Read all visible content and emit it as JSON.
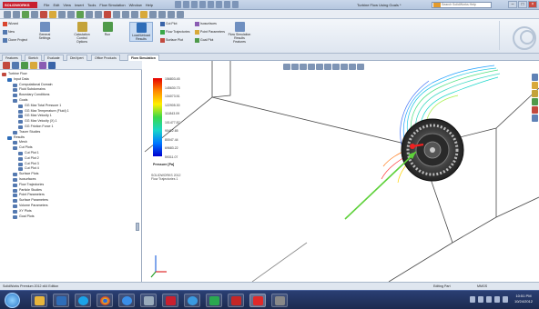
{
  "app": {
    "logo": "SOLIDWORKS",
    "title": "Turbine Flow Using Goals *"
  },
  "menu": [
    "File",
    "Edit",
    "View",
    "Insert",
    "Tools",
    "Flow Simulation",
    "Window",
    "Help"
  ],
  "search": {
    "placeholder": "Search SolidWorks Help"
  },
  "ribbon": {
    "buttons": [
      "Wizard",
      "General Settings",
      "Calculation Control Options",
      "Run",
      "Load/Unload Results",
      "Flow Simulation Results",
      "Flow Simulation Results Features"
    ],
    "small": [
      "Cut Plot",
      "Flow Trajectories",
      "Surface Plot",
      "Isosurfaces",
      "Point Parameters",
      "Goal Plot"
    ],
    "left_small": [
      "New",
      "Clone Project"
    ]
  },
  "tabs": [
    "Features",
    "Sketch",
    "Evaluate",
    "DimXpert",
    "Office Products",
    "Flow Simulation"
  ],
  "active_tab": "Flow Simulation",
  "tree": [
    {
      "label": "Turbine Flow",
      "level": 0
    },
    {
      "label": "Input Data",
      "level": 1
    },
    {
      "label": "Computational Domain",
      "level": 2
    },
    {
      "label": "Fluid Subdomains",
      "level": 2
    },
    {
      "label": "Boundary Conditions",
      "level": 2
    },
    {
      "label": "Goals",
      "level": 2
    },
    {
      "label": "GG Max Total Pressure 1",
      "level": 3
    },
    {
      "label": "GG Max Temperature (Fluid) 1",
      "level": 3
    },
    {
      "label": "GG Max Velocity 1",
      "level": 3
    },
    {
      "label": "GG Max Velocity (X) 1",
      "level": 3
    },
    {
      "label": "GG Friction Force 1",
      "level": 3
    },
    {
      "label": "Tracer Studies",
      "level": 2
    },
    {
      "label": "Results",
      "level": 1
    },
    {
      "label": "Mesh",
      "level": 2
    },
    {
      "label": "Cut Plots",
      "level": 2
    },
    {
      "label": "Cut Plot 1",
      "level": 3
    },
    {
      "label": "Cut Plot 2",
      "level": 3
    },
    {
      "label": "Cut Plot 3",
      "level": 3
    },
    {
      "label": "Cut Plot 4",
      "level": 3
    },
    {
      "label": "Surface Plots",
      "level": 2
    },
    {
      "label": "Isosurfaces",
      "level": 2
    },
    {
      "label": "Flow Trajectories",
      "level": 2
    },
    {
      "label": "Particle Studies",
      "level": 2
    },
    {
      "label": "Point Parameters",
      "level": 2
    },
    {
      "label": "Surface Parameters",
      "level": 2
    },
    {
      "label": "Volume Parameters",
      "level": 2
    },
    {
      "label": "XY Plots",
      "level": 2
    },
    {
      "label": "Goal Plots",
      "level": 2
    }
  ],
  "panel_tabs": [
    "Model",
    "Motion Study 1"
  ],
  "legend": {
    "values": [
      "156803.45",
      "145630.73",
      "134073.51",
      "122905.30",
      "111843.09",
      "101477.87",
      "90412.65",
      "80047.44",
      "69683.22",
      "59311.07"
    ],
    "unit": "Pressure [Pa]",
    "info": [
      "SOLIDWORKS 2012",
      "Flow Trajectories 1"
    ]
  },
  "status": {
    "left": "SolidWorks Premium 2012 x64 Edition",
    "mode": "Editing Part",
    "units": "MMGS"
  },
  "taskbar": {
    "time": "10:51 PM",
    "date": "10/24/2012"
  }
}
